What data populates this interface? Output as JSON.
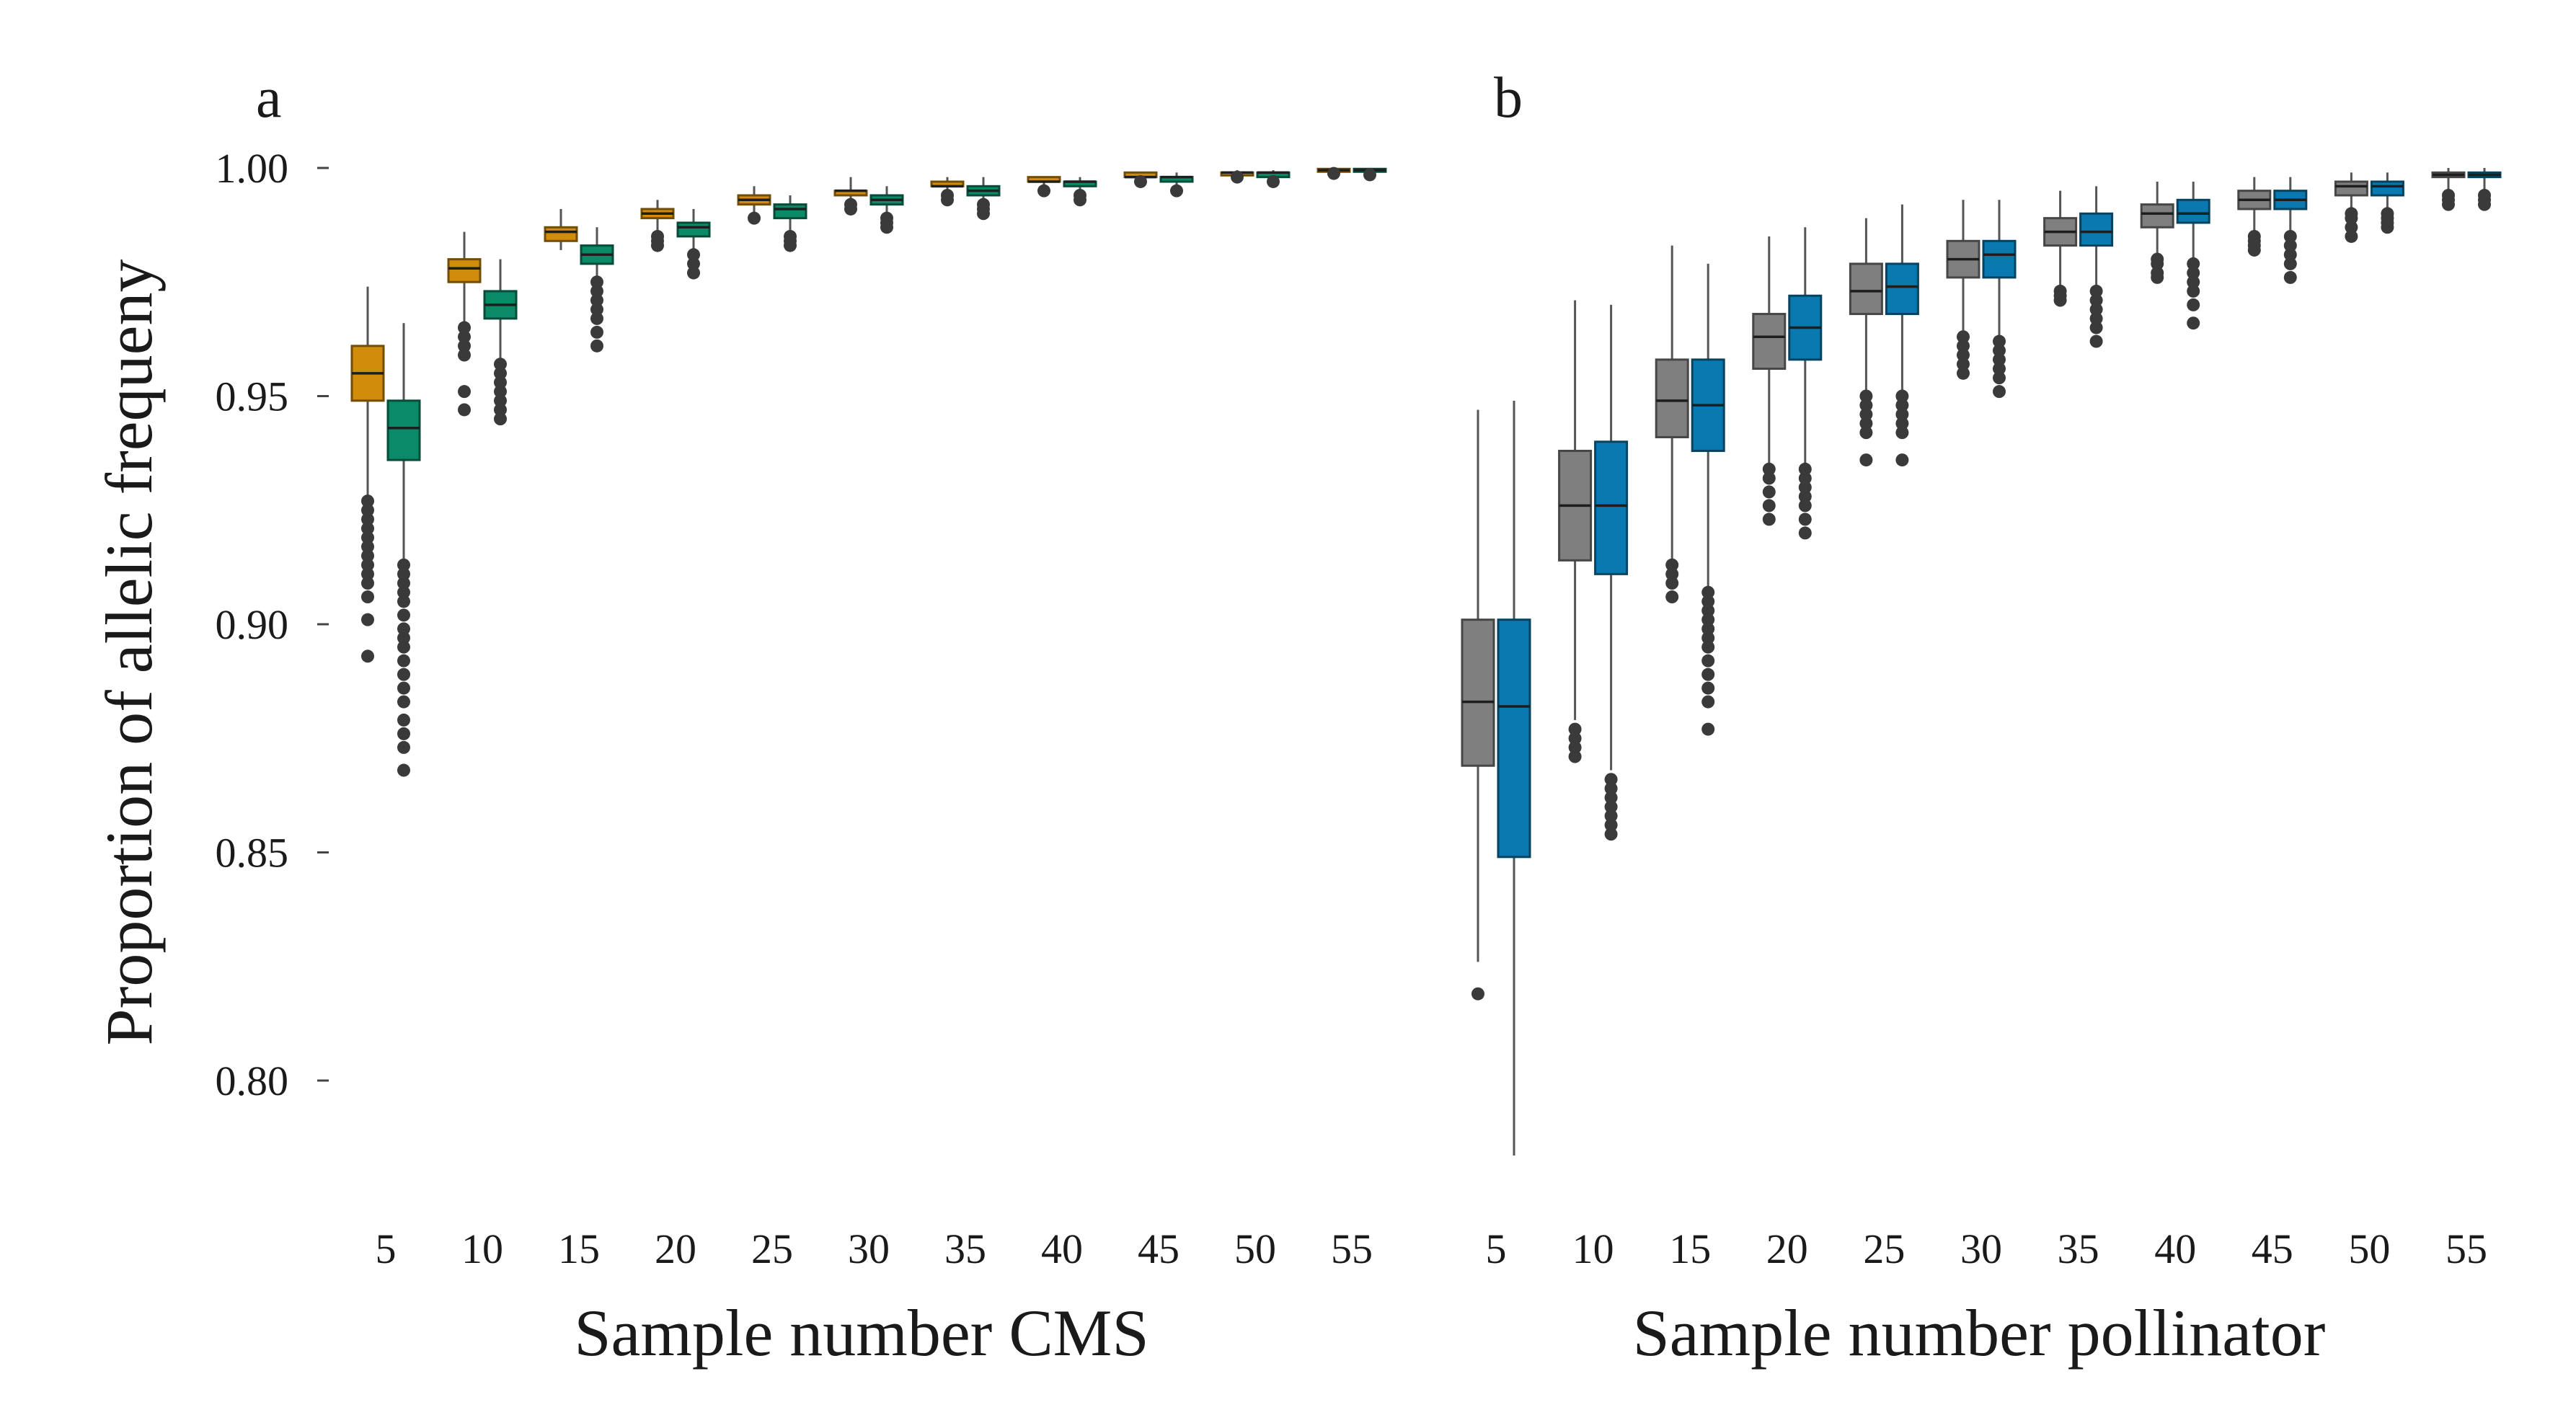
{
  "chart_data": [
    {
      "type": "boxplot",
      "panel_label": "a",
      "title": "",
      "xlabel": "Sample number CMS",
      "ylabel": "Proportion of allelic frequeny",
      "ylim": [
        0.782,
        1.004
      ],
      "yticks": [
        "1.00",
        "0.95",
        "0.90",
        "0.85",
        "0.80"
      ],
      "categories": [
        "5",
        "10",
        "15",
        "20",
        "25",
        "30",
        "35",
        "40",
        "45",
        "50",
        "55"
      ],
      "series": [
        {
          "name": "series-1",
          "color": "#d08c0a",
          "boxes": [
            {
              "wlo": 0.928,
              "q1": 0.949,
              "med": 0.955,
              "q3": 0.961,
              "whi": 0.974,
              "out": [
                0.927,
                0.925,
                0.923,
                0.921,
                0.919,
                0.917,
                0.915,
                0.913,
                0.911,
                0.909,
                0.906,
                0.901,
                0.893
              ]
            },
            {
              "wlo": 0.966,
              "q1": 0.975,
              "med": 0.978,
              "q3": 0.98,
              "whi": 0.986,
              "out": [
                0.965,
                0.963,
                0.961,
                0.959,
                0.951,
                0.947
              ]
            },
            {
              "wlo": 0.982,
              "q1": 0.984,
              "med": 0.986,
              "q3": 0.987,
              "whi": 0.991,
              "out": []
            },
            {
              "wlo": 0.986,
              "q1": 0.989,
              "med": 0.99,
              "q3": 0.991,
              "whi": 0.993,
              "out": [
                0.985,
                0.984,
                0.983
              ]
            },
            {
              "wlo": 0.99,
              "q1": 0.992,
              "med": 0.993,
              "q3": 0.994,
              "whi": 0.996,
              "out": [
                0.989
              ]
            },
            {
              "wlo": 0.993,
              "q1": 0.994,
              "med": 0.995,
              "q3": 0.995,
              "whi": 0.998,
              "out": [
                0.992,
                0.991
              ]
            },
            {
              "wlo": 0.995,
              "q1": 0.996,
              "med": 0.996,
              "q3": 0.997,
              "whi": 0.998,
              "out": [
                0.994,
                0.993
              ]
            },
            {
              "wlo": 0.996,
              "q1": 0.997,
              "med": 0.997,
              "q3": 0.998,
              "whi": 0.998,
              "out": [
                0.995
              ]
            },
            {
              "wlo": 0.998,
              "q1": 0.998,
              "med": 0.998,
              "q3": 0.999,
              "whi": 0.999,
              "out": [
                0.997
              ]
            },
            {
              "wlo": 0.998,
              "q1": 0.999,
              "med": 0.999,
              "q3": 0.999,
              "whi": 0.9995,
              "out": [
                0.998
              ]
            },
            {
              "wlo": 0.999,
              "q1": 0.9992,
              "med": 0.9995,
              "q3": 0.9998,
              "whi": 1.0,
              "out": [
                0.9988
              ]
            }
          ]
        },
        {
          "name": "series-2",
          "color": "#0b8a68",
          "boxes": [
            {
              "wlo": 0.914,
              "q1": 0.936,
              "med": 0.943,
              "q3": 0.949,
              "whi": 0.966,
              "out": [
                0.913,
                0.911,
                0.909,
                0.907,
                0.905,
                0.902,
                0.899,
                0.897,
                0.895,
                0.892,
                0.889,
                0.886,
                0.883,
                0.879,
                0.876,
                0.873,
                0.868
              ]
            },
            {
              "wlo": 0.958,
              "q1": 0.967,
              "med": 0.97,
              "q3": 0.973,
              "whi": 0.98,
              "out": [
                0.957,
                0.955,
                0.953,
                0.951,
                0.949,
                0.947,
                0.945
              ]
            },
            {
              "wlo": 0.976,
              "q1": 0.979,
              "med": 0.981,
              "q3": 0.983,
              "whi": 0.987,
              "out": [
                0.975,
                0.973,
                0.971,
                0.969,
                0.967,
                0.964,
                0.961
              ]
            },
            {
              "wlo": 0.982,
              "q1": 0.985,
              "med": 0.987,
              "q3": 0.988,
              "whi": 0.991,
              "out": [
                0.981,
                0.979,
                0.977
              ]
            },
            {
              "wlo": 0.986,
              "q1": 0.989,
              "med": 0.991,
              "q3": 0.992,
              "whi": 0.994,
              "out": [
                0.985,
                0.984,
                0.983
              ]
            },
            {
              "wlo": 0.99,
              "q1": 0.992,
              "med": 0.993,
              "q3": 0.994,
              "whi": 0.996,
              "out": [
                0.989,
                0.988,
                0.987
              ]
            },
            {
              "wlo": 0.993,
              "q1": 0.994,
              "med": 0.995,
              "q3": 0.996,
              "whi": 0.998,
              "out": [
                0.992,
                0.991,
                0.99
              ]
            },
            {
              "wlo": 0.995,
              "q1": 0.996,
              "med": 0.997,
              "q3": 0.997,
              "whi": 0.998,
              "out": [
                0.994,
                0.993
              ]
            },
            {
              "wlo": 0.996,
              "q1": 0.997,
              "med": 0.998,
              "q3": 0.998,
              "whi": 0.999,
              "out": [
                0.995
              ]
            },
            {
              "wlo": 0.998,
              "q1": 0.998,
              "med": 0.999,
              "q3": 0.999,
              "whi": 0.9995,
              "out": [
                0.997
              ]
            },
            {
              "wlo": 0.999,
              "q1": 0.9992,
              "med": 0.9995,
              "q3": 0.9998,
              "whi": 1.0,
              "out": [
                0.9985
              ]
            }
          ]
        }
      ]
    },
    {
      "type": "boxplot",
      "panel_label": "b",
      "title": "",
      "xlabel": "Sample number pollinator",
      "ylabel": "",
      "ylim": [
        0.782,
        1.004
      ],
      "yticks": [],
      "categories": [
        "5",
        "10",
        "15",
        "20",
        "25",
        "30",
        "35",
        "40",
        "45",
        "50",
        "55"
      ],
      "series": [
        {
          "name": "series-1",
          "color": "#7f7f7f",
          "boxes": [
            {
              "wlo": 0.826,
              "q1": 0.869,
              "med": 0.883,
              "q3": 0.901,
              "whi": 0.947,
              "out": [
                0.819
              ]
            },
            {
              "wlo": 0.879,
              "q1": 0.914,
              "med": 0.926,
              "q3": 0.938,
              "whi": 0.971,
              "out": [
                0.877,
                0.875,
                0.873,
                0.871
              ]
            },
            {
              "wlo": 0.914,
              "q1": 0.941,
              "med": 0.949,
              "q3": 0.958,
              "whi": 0.983,
              "out": [
                0.913,
                0.911,
                0.909,
                0.906
              ]
            },
            {
              "wlo": 0.935,
              "q1": 0.956,
              "med": 0.963,
              "q3": 0.968,
              "whi": 0.985,
              "out": [
                0.934,
                0.932,
                0.929,
                0.926,
                0.923
              ]
            },
            {
              "wlo": 0.951,
              "q1": 0.968,
              "med": 0.973,
              "q3": 0.979,
              "whi": 0.989,
              "out": [
                0.95,
                0.948,
                0.946,
                0.944,
                0.942,
                0.936
              ]
            },
            {
              "wlo": 0.964,
              "q1": 0.976,
              "med": 0.98,
              "q3": 0.984,
              "whi": 0.993,
              "out": [
                0.963,
                0.961,
                0.959,
                0.957,
                0.955
              ]
            },
            {
              "wlo": 0.974,
              "q1": 0.983,
              "med": 0.986,
              "q3": 0.989,
              "whi": 0.995,
              "out": [
                0.973,
                0.972,
                0.971
              ]
            },
            {
              "wlo": 0.981,
              "q1": 0.987,
              "med": 0.99,
              "q3": 0.992,
              "whi": 0.997,
              "out": [
                0.98,
                0.979,
                0.977,
                0.976
              ]
            },
            {
              "wlo": 0.986,
              "q1": 0.991,
              "med": 0.993,
              "q3": 0.995,
              "whi": 0.998,
              "out": [
                0.985,
                0.984,
                0.983,
                0.982
              ]
            },
            {
              "wlo": 0.991,
              "q1": 0.994,
              "med": 0.996,
              "q3": 0.997,
              "whi": 0.999,
              "out": [
                0.99,
                0.989,
                0.987,
                0.985
              ]
            },
            {
              "wlo": 0.995,
              "q1": 0.998,
              "med": 0.9985,
              "q3": 0.999,
              "whi": 1.0,
              "out": [
                0.994,
                0.993,
                0.992
              ]
            }
          ]
        },
        {
          "name": "series-2",
          "color": "#0979b0",
          "boxes": [
            {
              "wlo": 0.783,
              "q1": 0.849,
              "med": 0.882,
              "q3": 0.901,
              "whi": 0.949,
              "out": []
            },
            {
              "wlo": 0.868,
              "q1": 0.911,
              "med": 0.926,
              "q3": 0.94,
              "whi": 0.97,
              "out": [
                0.866,
                0.864,
                0.862,
                0.86,
                0.858,
                0.856,
                0.854
              ]
            },
            {
              "wlo": 0.908,
              "q1": 0.938,
              "med": 0.948,
              "q3": 0.958,
              "whi": 0.979,
              "out": [
                0.907,
                0.905,
                0.903,
                0.901,
                0.899,
                0.897,
                0.895,
                0.892,
                0.889,
                0.886,
                0.883,
                0.877
              ]
            },
            {
              "wlo": 0.935,
              "q1": 0.958,
              "med": 0.965,
              "q3": 0.972,
              "whi": 0.987,
              "out": [
                0.934,
                0.932,
                0.93,
                0.928,
                0.926,
                0.923,
                0.92
              ]
            },
            {
              "wlo": 0.951,
              "q1": 0.968,
              "med": 0.974,
              "q3": 0.979,
              "whi": 0.992,
              "out": [
                0.95,
                0.948,
                0.946,
                0.944,
                0.942,
                0.936
              ]
            },
            {
              "wlo": 0.963,
              "q1": 0.976,
              "med": 0.981,
              "q3": 0.984,
              "whi": 0.993,
              "out": [
                0.962,
                0.96,
                0.958,
                0.956,
                0.954,
                0.951
              ]
            },
            {
              "wlo": 0.974,
              "q1": 0.983,
              "med": 0.986,
              "q3": 0.99,
              "whi": 0.996,
              "out": [
                0.973,
                0.971,
                0.969,
                0.967,
                0.965,
                0.962
              ]
            },
            {
              "wlo": 0.98,
              "q1": 0.988,
              "med": 0.99,
              "q3": 0.993,
              "whi": 0.997,
              "out": [
                0.979,
                0.977,
                0.975,
                0.973,
                0.97,
                0.966
              ]
            },
            {
              "wlo": 0.986,
              "q1": 0.991,
              "med": 0.993,
              "q3": 0.995,
              "whi": 0.998,
              "out": [
                0.985,
                0.983,
                0.981,
                0.979,
                0.976
              ]
            },
            {
              "wlo": 0.991,
              "q1": 0.994,
              "med": 0.996,
              "q3": 0.997,
              "whi": 0.999,
              "out": [
                0.99,
                0.989,
                0.988,
                0.987
              ]
            },
            {
              "wlo": 0.995,
              "q1": 0.998,
              "med": 0.9985,
              "q3": 0.999,
              "whi": 1.0,
              "out": [
                0.994,
                0.993,
                0.992
              ]
            }
          ]
        }
      ]
    }
  ]
}
